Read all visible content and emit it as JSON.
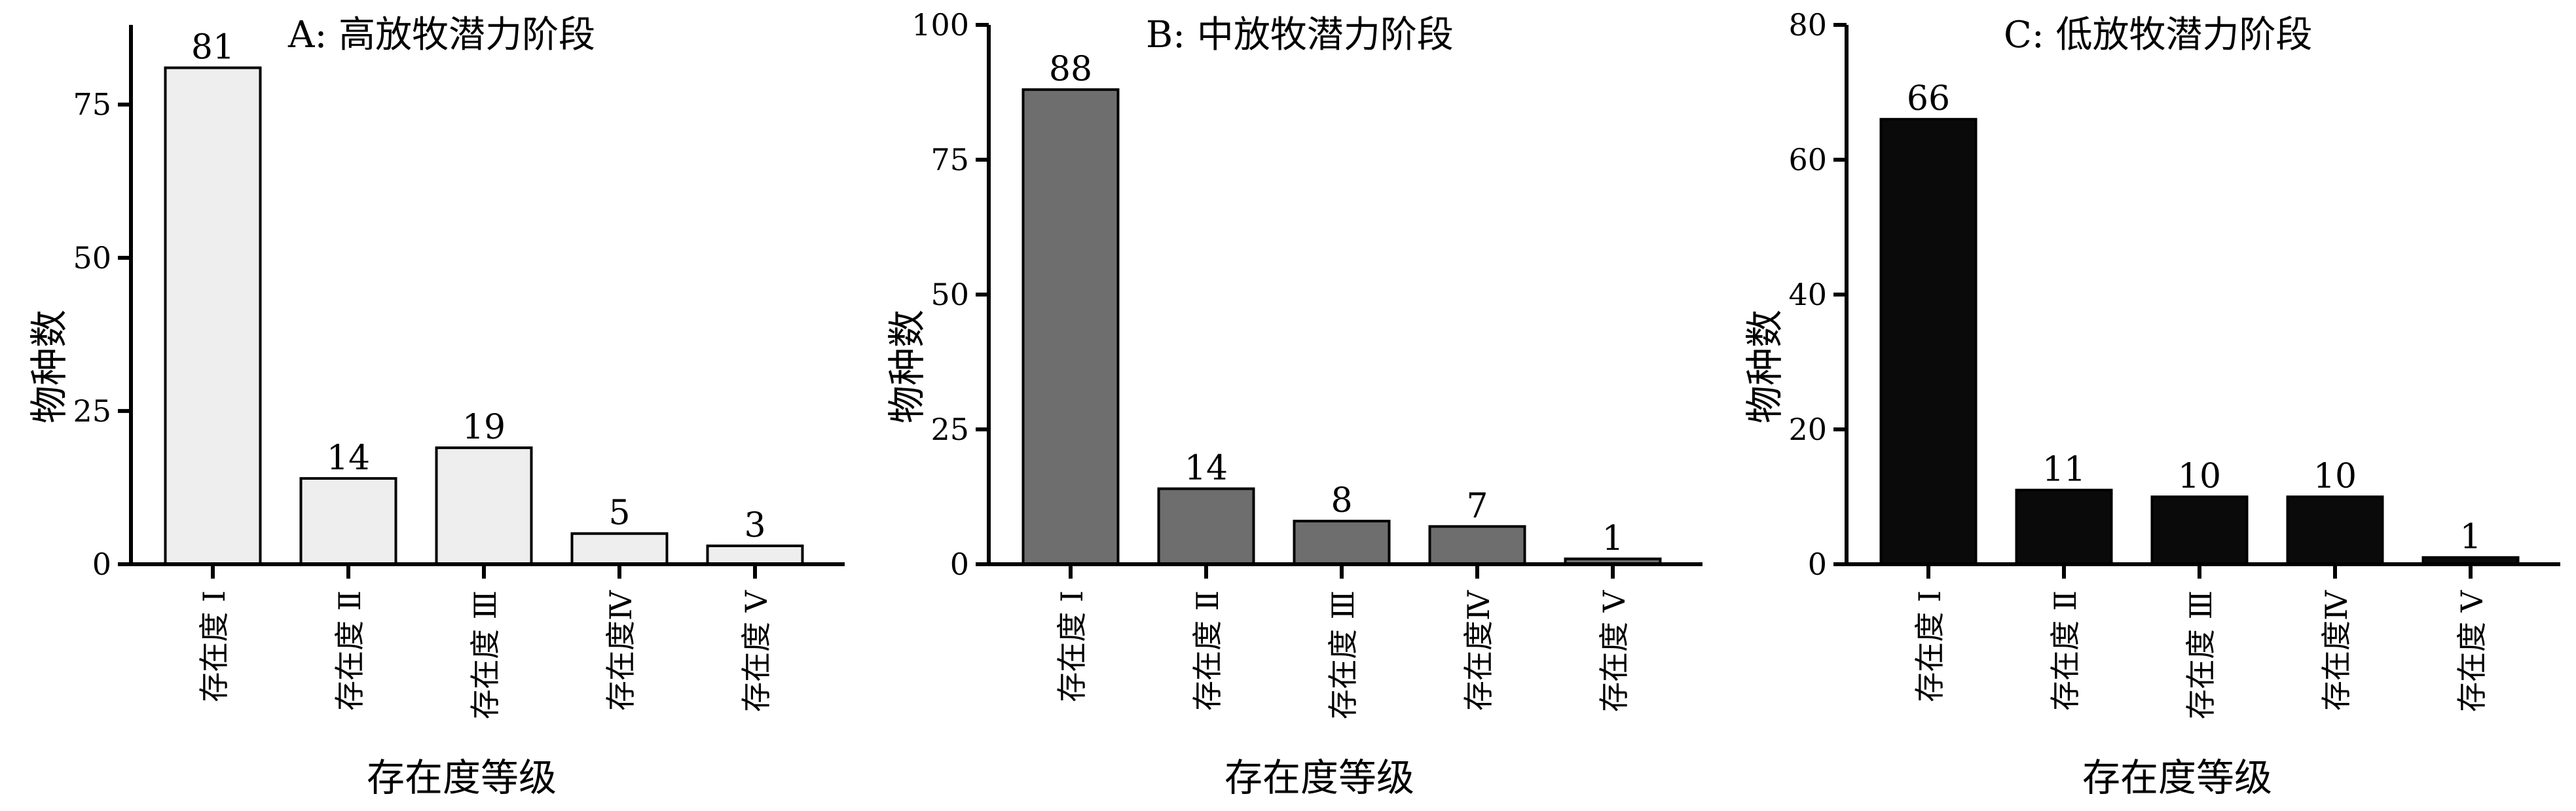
{
  "chart_data": [
    {
      "panel": "A",
      "type": "bar",
      "title": "A: 高放牧潜力阶段",
      "xlabel": "存在度等级",
      "ylabel": "物种数",
      "categories": [
        "存在度 Ⅰ",
        "存在度 Ⅱ",
        "存在度 Ⅲ",
        "存在度Ⅳ",
        "存在度 Ⅴ"
      ],
      "values": [
        81,
        14,
        19,
        5,
        3
      ],
      "data_labels": [
        "81",
        "14",
        "19",
        "5",
        "3"
      ],
      "ylim": [
        0,
        88
      ],
      "yticks": [
        0,
        25,
        50,
        75
      ],
      "ytick_labels": [
        "0",
        "25",
        "50",
        "75"
      ],
      "bar_color": "#eeeeee",
      "grid": false
    },
    {
      "panel": "B",
      "type": "bar",
      "title": "B: 中放牧潜力阶段",
      "xlabel": "存在度等级",
      "ylabel": "物种数",
      "categories": [
        "存在度 Ⅰ",
        "存在度 Ⅱ",
        "存在度 Ⅲ",
        "存在度Ⅳ",
        "存在度 Ⅴ"
      ],
      "values": [
        88,
        14,
        8,
        7,
        1
      ],
      "data_labels": [
        "88",
        "14",
        "8",
        "7",
        "1"
      ],
      "ylim": [
        0,
        100
      ],
      "yticks": [
        0,
        25,
        50,
        75,
        100
      ],
      "ytick_labels": [
        "0",
        "25",
        "50",
        "75",
        "100"
      ],
      "bar_color": "#6e6e6e",
      "grid": false
    },
    {
      "panel": "C",
      "type": "bar",
      "title": "C: 低放牧潜力阶段",
      "xlabel": "存在度等级",
      "ylabel": "物种数",
      "categories": [
        "存在度 Ⅰ",
        "存在度 Ⅱ",
        "存在度 Ⅲ",
        "存在度Ⅳ",
        "存在度 Ⅴ"
      ],
      "values": [
        66,
        11,
        10,
        10,
        1
      ],
      "data_labels": [
        "66",
        "11",
        "10",
        "10",
        "1"
      ],
      "ylim": [
        0,
        80
      ],
      "yticks": [
        0,
        20,
        40,
        60,
        80
      ],
      "ytick_labels": [
        "0",
        "20",
        "40",
        "60",
        "80"
      ],
      "bar_color": "#0a0a0a",
      "grid": false
    }
  ]
}
